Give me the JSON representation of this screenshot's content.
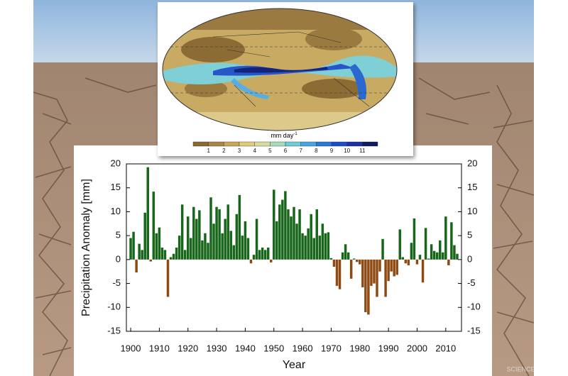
{
  "chart_data": {
    "type": "bar",
    "x": [
      1900,
      1901,
      1902,
      1903,
      1904,
      1905,
      1906,
      1907,
      1908,
      1909,
      1910,
      1911,
      1912,
      1913,
      1914,
      1915,
      1916,
      1917,
      1918,
      1919,
      1920,
      1921,
      1922,
      1923,
      1924,
      1925,
      1926,
      1927,
      1928,
      1929,
      1930,
      1931,
      1932,
      1933,
      1934,
      1935,
      1936,
      1937,
      1938,
      1939,
      1940,
      1941,
      1942,
      1943,
      1944,
      1945,
      1946,
      1947,
      1948,
      1949,
      1950,
      1951,
      1952,
      1953,
      1954,
      1955,
      1956,
      1957,
      1958,
      1959,
      1960,
      1961,
      1962,
      1963,
      1964,
      1965,
      1966,
      1967,
      1968,
      1969,
      1970,
      1971,
      1972,
      1973,
      1974,
      1975,
      1976,
      1977,
      1978,
      1979,
      1980,
      1981,
      1982,
      1983,
      1984,
      1985,
      1986,
      1987,
      1988,
      1989,
      1990,
      1991,
      1992,
      1993,
      1994,
      1995,
      1996,
      1997,
      1998,
      1999,
      2000,
      2001,
      2002,
      2003,
      2004,
      2005,
      2006,
      2007,
      2008,
      2009,
      2010,
      2011,
      2012,
      2013,
      2014
    ],
    "values": [
      4.5,
      5.8,
      -2.7,
      3.3,
      2.0,
      9.8,
      19.3,
      -0.4,
      14.2,
      5.5,
      6.7,
      2.5,
      2.0,
      -7.8,
      0.5,
      1.2,
      2.5,
      5.0,
      11.5,
      2.0,
      9.0,
      4.5,
      11.0,
      8.5,
      10.3,
      4.0,
      5.5,
      3.5,
      13.0,
      7.5,
      11.0,
      10.5,
      5.5,
      8.5,
      11.5,
      6.0,
      3.0,
      9.5,
      13.5,
      5.0,
      8.0,
      4.5,
      -0.8,
      1.0,
      8.5,
      2.0,
      2.5,
      2.0,
      2.5,
      -0.6,
      14.6,
      8.0,
      11.5,
      12.5,
      14.3,
      10.5,
      9.0,
      11.0,
      7.5,
      10.5,
      5.5,
      5.0,
      6.5,
      9.5,
      4.5,
      10.5,
      5.0,
      7.5,
      5.5,
      5.7,
      0.3,
      -1.5,
      -5.5,
      -6.2,
      1.5,
      3.2,
      1.5,
      -4.0,
      0.2,
      -0.5,
      -1.0,
      -5.8,
      -11.0,
      -11.5,
      -5.5,
      -5.0,
      -7.8,
      -2.5,
      4.3,
      -7.8,
      -4.5,
      -2.5,
      -3.5,
      -3.2,
      6.3,
      0.5,
      -0.8,
      -1.2,
      3.5,
      8.6,
      -1.0,
      1.0,
      -4.8,
      6.6,
      0.2,
      3.2,
      1.8,
      1.5,
      4.0,
      1.5,
      9.0,
      -1.2,
      7.8,
      3.0,
      1.2
    ],
    "positive_color": "#17661a",
    "negative_color": "#8e4a12",
    "xlabel": "Year",
    "ylabel": "Precipitation Anomaly [mm]",
    "xlim": [
      1898.5,
      2015.5
    ],
    "xticks": [
      1900,
      1910,
      1920,
      1930,
      1940,
      1950,
      1960,
      1970,
      1980,
      1990,
      2000,
      2010
    ],
    "ylim": [
      -15,
      20
    ],
    "yticks": [
      -15,
      -10,
      -5,
      0,
      5,
      10,
      15,
      20
    ]
  },
  "map": {
    "colorbar": {
      "unit": "mm day",
      "unit_exponent": "-1",
      "labels": [
        "1",
        "2",
        "3",
        "4",
        "5",
        "6",
        "7",
        "8",
        "9",
        "10",
        "11"
      ],
      "colors": [
        "#8a6a30",
        "#a88848",
        "#c6a85e",
        "#e0cc7c",
        "#d6dc9c",
        "#a6dcbc",
        "#6ecbd8",
        "#45a6e0",
        "#2a78d6",
        "#1b4ec6",
        "#1930a6",
        "#111a5e"
      ]
    }
  },
  "watermark": "SCIENCEAQ.COM"
}
